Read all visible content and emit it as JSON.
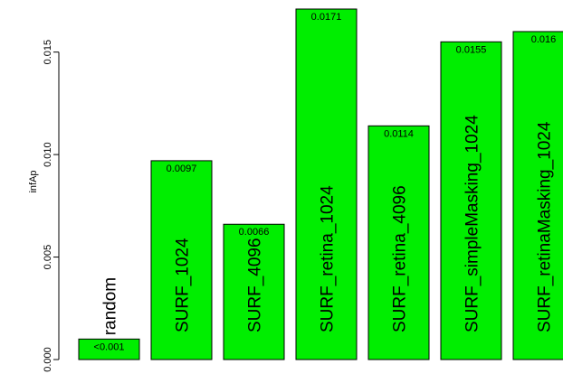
{
  "chart_data": {
    "type": "bar",
    "title": "",
    "xlabel": "",
    "ylabel": "infAp",
    "ylim": [
      0,
      0.0171
    ],
    "yticks": [
      "0.000",
      "0.005",
      "0.010",
      "0.015"
    ],
    "ytick_values": [
      0,
      0.005,
      0.01,
      0.015
    ],
    "grid": false,
    "bar_color": "#00ee00",
    "categories": [
      "random",
      "SURF_1024",
      "SURF_4096",
      "SURF_retina_1024",
      "SURF_retina_4096",
      "SURF_simpleMasking_1024",
      "SURF_retinaMasking_1024"
    ],
    "values": [
      0.001,
      0.0097,
      0.0066,
      0.0171,
      0.0114,
      0.0155,
      0.016
    ],
    "value_labels": [
      "<0.001",
      "0.0097",
      "0.0066",
      "0.0171",
      "0.0114",
      "0.0155",
      "0.016"
    ]
  }
}
